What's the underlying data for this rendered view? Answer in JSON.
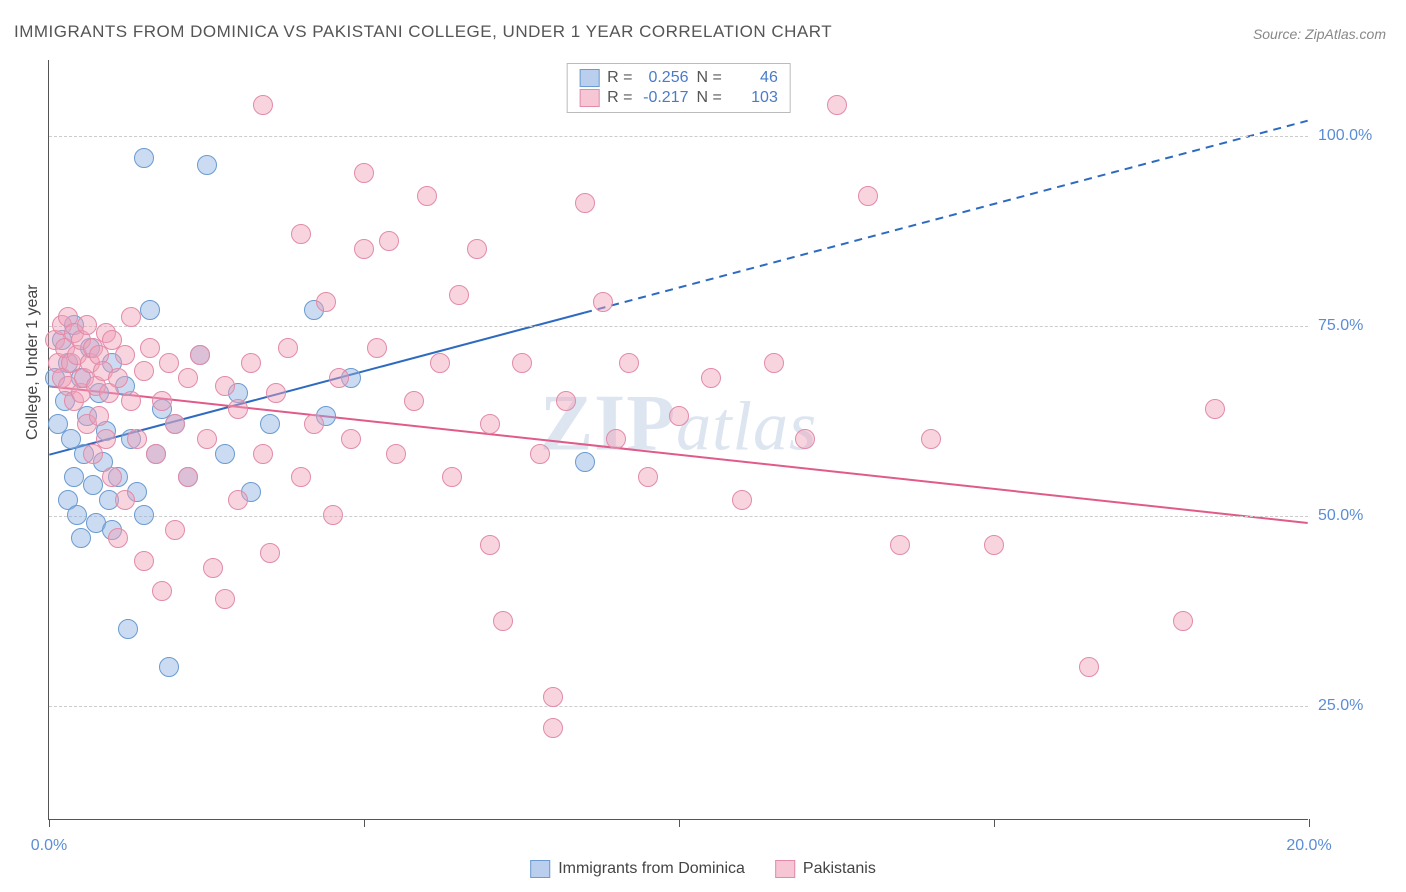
{
  "title": "IMMIGRANTS FROM DOMINICA VS PAKISTANI COLLEGE, UNDER 1 YEAR CORRELATION CHART",
  "source": "Source: ZipAtlas.com",
  "ylabel": "College, Under 1 year",
  "watermark_zip": "ZIP",
  "watermark_atlas": "atlas",
  "chart": {
    "type": "scatter",
    "xlim": [
      0,
      20
    ],
    "ylim": [
      10,
      110
    ],
    "xtick_positions": [
      0,
      5,
      10,
      15,
      20
    ],
    "xtick_labels": [
      "0.0%",
      "",
      "",
      "",
      "20.0%"
    ],
    "ytick_positions": [
      25,
      50,
      75,
      100
    ],
    "ytick_labels": [
      "25.0%",
      "50.0%",
      "75.0%",
      "100.0%"
    ],
    "background": "#ffffff",
    "grid_color": "#cccccc",
    "axis_color": "#555555",
    "point_radius": 10,
    "series": [
      {
        "name": "Immigrants from Dominica",
        "color_fill": "rgba(140,175,225,0.45)",
        "color_stroke": "#6b9bd1",
        "R": "0.256",
        "N": "46",
        "trend": {
          "y_at_x0": 58,
          "y_at_xmax": 102,
          "solid_until_x": 8.5,
          "color": "#2e6bc0",
          "width": 2
        },
        "points": [
          [
            0.1,
            68
          ],
          [
            0.15,
            62
          ],
          [
            0.2,
            73
          ],
          [
            0.25,
            65
          ],
          [
            0.3,
            70
          ],
          [
            0.3,
            52
          ],
          [
            0.35,
            60
          ],
          [
            0.4,
            55
          ],
          [
            0.4,
            75
          ],
          [
            0.45,
            50
          ],
          [
            0.5,
            68
          ],
          [
            0.5,
            47
          ],
          [
            0.55,
            58
          ],
          [
            0.6,
            63
          ],
          [
            0.65,
            72
          ],
          [
            0.7,
            54
          ],
          [
            0.75,
            49
          ],
          [
            0.8,
            66
          ],
          [
            0.85,
            57
          ],
          [
            0.9,
            61
          ],
          [
            0.95,
            52
          ],
          [
            1.0,
            70
          ],
          [
            1.0,
            48
          ],
          [
            1.1,
            55
          ],
          [
            1.2,
            67
          ],
          [
            1.25,
            35
          ],
          [
            1.3,
            60
          ],
          [
            1.4,
            53
          ],
          [
            1.5,
            97
          ],
          [
            1.5,
            50
          ],
          [
            1.6,
            77
          ],
          [
            1.7,
            58
          ],
          [
            1.8,
            64
          ],
          [
            1.9,
            30
          ],
          [
            2.0,
            62
          ],
          [
            2.2,
            55
          ],
          [
            2.4,
            71
          ],
          [
            2.5,
            96
          ],
          [
            2.8,
            58
          ],
          [
            3.0,
            66
          ],
          [
            3.2,
            53
          ],
          [
            3.5,
            62
          ],
          [
            4.2,
            77
          ],
          [
            4.4,
            63
          ],
          [
            4.8,
            68
          ],
          [
            8.5,
            57
          ]
        ]
      },
      {
        "name": "Pakistanis",
        "color_fill": "rgba(240,160,185,0.45)",
        "color_stroke": "#e28ba8",
        "R": "-0.217",
        "N": "103",
        "trend": {
          "y_at_x0": 67,
          "y_at_xmax": 49,
          "solid_until_x": 20,
          "color": "#e05b8a",
          "width": 2
        },
        "points": [
          [
            0.1,
            73
          ],
          [
            0.15,
            70
          ],
          [
            0.2,
            68
          ],
          [
            0.2,
            75
          ],
          [
            0.25,
            72
          ],
          [
            0.3,
            67
          ],
          [
            0.3,
            76
          ],
          [
            0.35,
            70
          ],
          [
            0.4,
            74
          ],
          [
            0.4,
            65
          ],
          [
            0.45,
            71
          ],
          [
            0.5,
            73
          ],
          [
            0.5,
            66
          ],
          [
            0.55,
            68
          ],
          [
            0.6,
            75
          ],
          [
            0.6,
            62
          ],
          [
            0.65,
            70
          ],
          [
            0.7,
            72
          ],
          [
            0.7,
            58
          ],
          [
            0.75,
            67
          ],
          [
            0.8,
            71
          ],
          [
            0.8,
            63
          ],
          [
            0.85,
            69
          ],
          [
            0.9,
            74
          ],
          [
            0.9,
            60
          ],
          [
            0.95,
            66
          ],
          [
            1.0,
            73
          ],
          [
            1.0,
            55
          ],
          [
            1.1,
            68
          ],
          [
            1.1,
            47
          ],
          [
            1.2,
            71
          ],
          [
            1.2,
            52
          ],
          [
            1.3,
            65
          ],
          [
            1.3,
            76
          ],
          [
            1.4,
            60
          ],
          [
            1.5,
            69
          ],
          [
            1.5,
            44
          ],
          [
            1.6,
            72
          ],
          [
            1.7,
            58
          ],
          [
            1.8,
            65
          ],
          [
            1.8,
            40
          ],
          [
            1.9,
            70
          ],
          [
            2.0,
            62
          ],
          [
            2.0,
            48
          ],
          [
            2.2,
            68
          ],
          [
            2.2,
            55
          ],
          [
            2.4,
            71
          ],
          [
            2.5,
            60
          ],
          [
            2.6,
            43
          ],
          [
            2.8,
            67
          ],
          [
            2.8,
            39
          ],
          [
            3.0,
            64
          ],
          [
            3.0,
            52
          ],
          [
            3.2,
            70
          ],
          [
            3.4,
            58
          ],
          [
            3.4,
            104
          ],
          [
            3.5,
            45
          ],
          [
            3.6,
            66
          ],
          [
            3.8,
            72
          ],
          [
            4.0,
            55
          ],
          [
            4.0,
            87
          ],
          [
            4.2,
            62
          ],
          [
            4.4,
            78
          ],
          [
            4.5,
            50
          ],
          [
            4.6,
            68
          ],
          [
            4.8,
            60
          ],
          [
            5.0,
            85
          ],
          [
            5.0,
            95
          ],
          [
            5.2,
            72
          ],
          [
            5.4,
            86
          ],
          [
            5.5,
            58
          ],
          [
            5.8,
            65
          ],
          [
            6.0,
            92
          ],
          [
            6.2,
            70
          ],
          [
            6.4,
            55
          ],
          [
            6.5,
            79
          ],
          [
            6.8,
            85
          ],
          [
            7.0,
            46
          ],
          [
            7.0,
            62
          ],
          [
            7.2,
            36
          ],
          [
            7.5,
            70
          ],
          [
            7.8,
            58
          ],
          [
            8.0,
            26
          ],
          [
            8.0,
            22
          ],
          [
            8.2,
            65
          ],
          [
            8.5,
            91
          ],
          [
            8.8,
            78
          ],
          [
            9.0,
            60
          ],
          [
            9.2,
            70
          ],
          [
            9.5,
            55
          ],
          [
            10.0,
            63
          ],
          [
            10.5,
            68
          ],
          [
            11.0,
            52
          ],
          [
            11.5,
            70
          ],
          [
            12.0,
            60
          ],
          [
            12.5,
            104
          ],
          [
            13.0,
            92
          ],
          [
            13.5,
            46
          ],
          [
            14.0,
            60
          ],
          [
            15.0,
            46
          ],
          [
            16.5,
            30
          ],
          [
            18.0,
            36
          ],
          [
            18.5,
            64
          ]
        ]
      }
    ]
  },
  "legend_top": {
    "r_label": "R =",
    "n_label": "N ="
  },
  "legend_bottom": [
    "Immigrants from Dominica",
    "Pakistanis"
  ]
}
